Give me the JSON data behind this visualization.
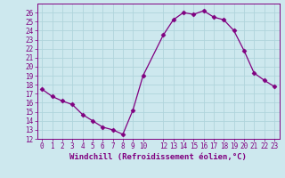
{
  "x": [
    0,
    1,
    2,
    3,
    4,
    5,
    6,
    7,
    8,
    9,
    10,
    12,
    13,
    14,
    15,
    16,
    17,
    18,
    19,
    20,
    21,
    22,
    23
  ],
  "y": [
    17.5,
    16.7,
    16.2,
    15.8,
    14.7,
    14.0,
    13.3,
    13.0,
    12.5,
    15.2,
    19.0,
    23.5,
    25.2,
    26.0,
    25.8,
    26.2,
    25.5,
    25.2,
    24.0,
    21.8,
    19.3,
    18.5,
    17.8
  ],
  "line_color": "#800080",
  "marker": "D",
  "marker_size": 2.5,
  "bg_color": "#cde8ee",
  "grid_color": "#b0d4dc",
  "xlabel": "Windchill (Refroidissement éolien,°C)",
  "xlim_min": -0.5,
  "xlim_max": 23.5,
  "ylim_min": 12,
  "ylim_max": 27,
  "xticks": [
    0,
    1,
    2,
    3,
    4,
    5,
    6,
    7,
    8,
    9,
    10,
    12,
    13,
    14,
    15,
    16,
    17,
    18,
    19,
    20,
    21,
    22,
    23
  ],
  "yticks": [
    12,
    13,
    14,
    15,
    16,
    17,
    18,
    19,
    20,
    21,
    22,
    23,
    24,
    25,
    26
  ],
  "tick_color": "#800080",
  "tick_fontsize": 5.5,
  "xlabel_fontsize": 6.5,
  "spine_color": "#800080",
  "linewidth": 0.9
}
